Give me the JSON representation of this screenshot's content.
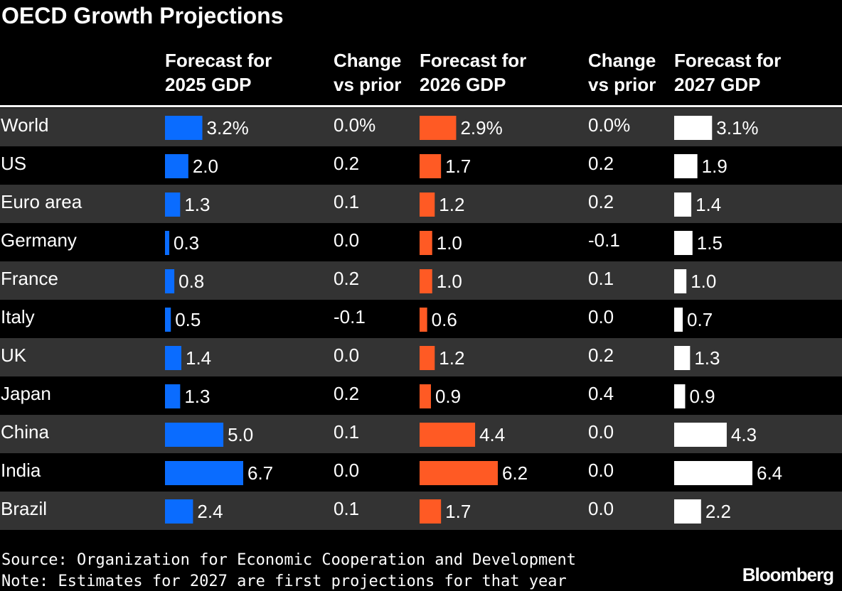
{
  "chart_data": {
    "type": "table-bars",
    "title": "OECD Growth Projections",
    "categories": [
      "World",
      "US",
      "Euro area",
      "Germany",
      "France",
      "Italy",
      "UK",
      "Japan",
      "China",
      "India",
      "Brazil"
    ],
    "columns": [
      {
        "header": [
          "Forecast for",
          "2025 GDP"
        ],
        "color": "#0a6cff",
        "values": [
          3.2,
          2.0,
          1.3,
          0.3,
          0.8,
          0.5,
          1.4,
          1.3,
          5.0,
          6.7,
          2.4
        ],
        "value_labels": [
          "3.2%",
          "2.0",
          "1.3",
          "0.3",
          "0.8",
          "0.5",
          "1.4",
          "1.3",
          "5.0",
          "6.7",
          "2.4"
        ]
      },
      {
        "header": [
          "Change",
          "vs prior"
        ],
        "value_labels": [
          "0.0%",
          "0.2",
          "0.1",
          "0.0",
          "0.2",
          "-0.1",
          "0.0",
          "0.2",
          "0.1",
          "0.0",
          "0.1"
        ]
      },
      {
        "header": [
          "Forecast for",
          "2026 GDP"
        ],
        "color": "#ff5a24",
        "values": [
          2.9,
          1.7,
          1.2,
          1.0,
          1.0,
          0.6,
          1.2,
          0.9,
          4.4,
          6.2,
          1.7
        ],
        "value_labels": [
          "2.9%",
          "1.7",
          "1.2",
          "1.0",
          "1.0",
          "0.6",
          "1.2",
          "0.9",
          "4.4",
          "6.2",
          "1.7"
        ]
      },
      {
        "header": [
          "Change",
          "vs prior"
        ],
        "value_labels": [
          "0.0%",
          "0.2",
          "0.2",
          "-0.1",
          "0.1",
          "0.0",
          "0.2",
          "0.4",
          "0.0",
          "0.0",
          "0.0"
        ]
      },
      {
        "header": [
          "Forecast for",
          "2027 GDP"
        ],
        "color": "#ffffff",
        "values": [
          3.1,
          1.9,
          1.4,
          1.5,
          1.0,
          0.7,
          1.3,
          0.9,
          4.3,
          6.4,
          2.2
        ],
        "value_labels": [
          "3.1%",
          "1.9",
          "1.4",
          "1.5",
          "1.0",
          "0.7",
          "1.3",
          "0.9",
          "4.3",
          "6.4",
          "2.2"
        ]
      }
    ],
    "notes": [
      "Source: Organization for Economic Cooperation and Development",
      "Note: Estimates for 2027 are first projections for that year"
    ],
    "brand": "Bloomberg"
  }
}
